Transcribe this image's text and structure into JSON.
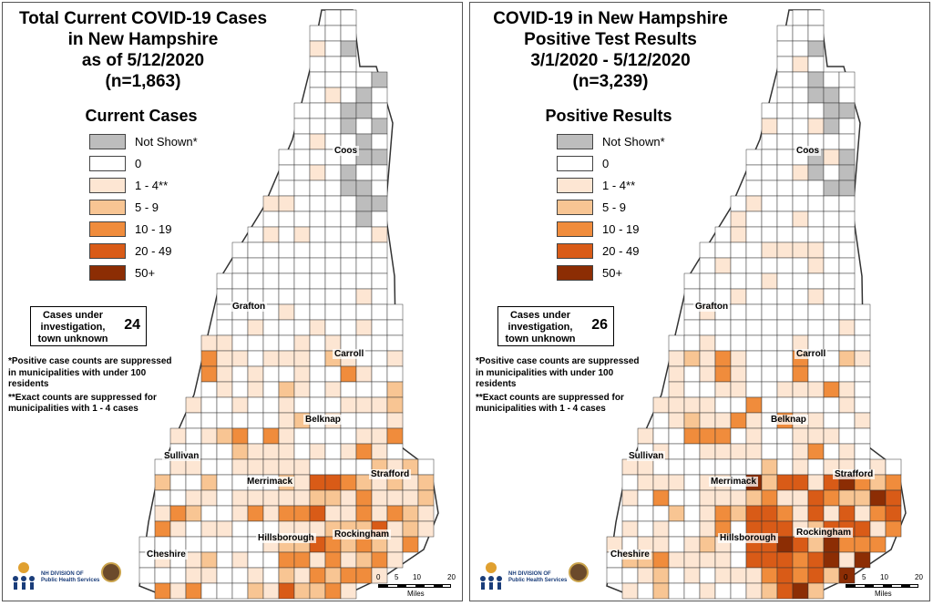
{
  "colors": {
    "not_shown": "#bdbdbd",
    "zero": "#ffffff",
    "c1_4": "#fde6d3",
    "c5_9": "#f8c593",
    "c10_19": "#f08c3c",
    "c20_49": "#d95b17",
    "c50": "#8c2d04",
    "border": "#333333"
  },
  "left": {
    "title": [
      "Total Current COVID-19 Cases",
      "in New Hampshire",
      "as of 5/12/2020",
      "(n=1,863)"
    ],
    "legend_title": "Current Cases",
    "investigation_text": "Cases under investigation, town unknown",
    "investigation_count": "24"
  },
  "right": {
    "title": [
      "COVID-19 in New Hampshire",
      "Positive Test Results",
      "3/1/2020 - 5/12/2020",
      "(n=3,239)"
    ],
    "legend_title": "Positive Results",
    "investigation_text": "Cases under investigation, town unknown",
    "investigation_count": "26"
  },
  "legend_items": [
    {
      "label": "Not Shown*",
      "color_key": "not_shown"
    },
    {
      "label": "0",
      "color_key": "zero"
    },
    {
      "label": "1 - 4**",
      "color_key": "c1_4"
    },
    {
      "label": "5 - 9",
      "color_key": "c5_9"
    },
    {
      "label": "10 - 19",
      "color_key": "c10_19"
    },
    {
      "label": "20 - 49",
      "color_key": "c20_49"
    },
    {
      "label": "50+",
      "color_key": "c50"
    }
  ],
  "notes": {
    "note1": "*Positive case counts are suppressed in municipalities with under 100 residents",
    "note2": "**Exact counts are suppressed for municipalities with 1 - 4 cases"
  },
  "counties": [
    "Coos",
    "Grafton",
    "Carroll",
    "Belknap",
    "Sullivan",
    "Merrimack",
    "Strafford",
    "Cheshire",
    "Hillsborough",
    "Rockingham"
  ],
  "logo": {
    "line1": "NH DIVISION OF",
    "line2": "Public Health Services"
  },
  "scale": {
    "ticks": [
      "0",
      "5",
      "10",
      "20"
    ],
    "unit": "Miles"
  }
}
